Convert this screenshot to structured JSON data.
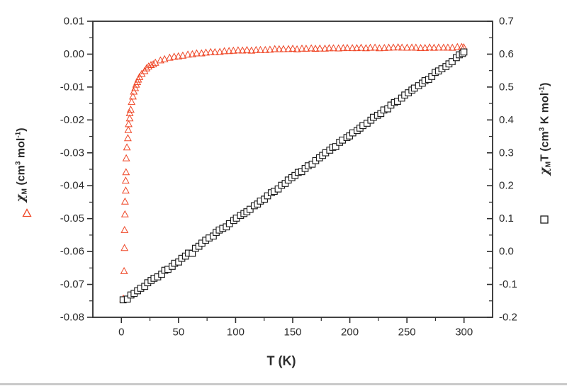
{
  "figure": {
    "background": "#ffffff",
    "frame_color": "#2e2e2e",
    "text_color": "#2b2b2b",
    "bottom_edge_color": "#c9c9c9"
  },
  "chart_data": {
    "type": "scatter",
    "title": "",
    "x_axis": {
      "label": "T (K)",
      "range": [
        -25,
        325
      ],
      "major_ticks": [
        0,
        50,
        100,
        150,
        200,
        250,
        300
      ],
      "major_tick_labels": [
        "0",
        "50",
        "100",
        "150",
        "200",
        "250",
        "300"
      ],
      "minor_ticks": [
        25,
        75,
        125,
        175,
        225,
        275
      ]
    },
    "left_axis": {
      "label": "χM (cm3 mol-1)",
      "title_parts": [
        {
          "t": "χ",
          "chi": true
        },
        {
          "t": "M",
          "pos": "sub"
        },
        {
          "t": " (cm"
        },
        {
          "t": "3",
          "pos": "sup"
        },
        {
          "t": " mol"
        },
        {
          "t": "-1",
          "pos": "sup"
        },
        {
          "t": ")"
        }
      ],
      "range": [
        -0.08,
        0.01
      ],
      "tick_values": [
        0.01,
        0.0,
        -0.01,
        -0.02,
        -0.03,
        -0.04,
        -0.05,
        -0.06,
        -0.07,
        -0.08
      ],
      "tick_labels": [
        "0.01",
        "0.00",
        "-0.01",
        "-0.02",
        "-0.03",
        "-0.04",
        "-0.05",
        "-0.06",
        "-0.07",
        "-0.08"
      ],
      "minor_ticks": [
        0.005,
        -0.005,
        -0.015,
        -0.025,
        -0.035,
        -0.045,
        -0.055,
        -0.065,
        -0.075
      ]
    },
    "right_axis": {
      "label": "χMT (cm3 K mol-1)",
      "title_parts": [
        {
          "t": "χ",
          "chi": true
        },
        {
          "t": "M",
          "pos": "sub"
        },
        {
          "t": "T"
        },
        {
          "t": " (cm"
        },
        {
          "t": "3",
          "pos": "sup"
        },
        {
          "t": " K mol"
        },
        {
          "t": "-1",
          "pos": "sup"
        },
        {
          "t": ")"
        }
      ],
      "range": [
        -0.2,
        0.7
      ],
      "tick_values": [
        0.7,
        0.6,
        0.5,
        0.4,
        0.3,
        0.2,
        0.1,
        0.0,
        -0.1,
        -0.2
      ],
      "tick_labels": [
        "0.7",
        "0.6",
        "0.5",
        "0.4",
        "0.3",
        "0.2",
        "0.1",
        "0.0",
        "-0.1",
        "-0.2"
      ],
      "minor_ticks": [
        0.65,
        0.55,
        0.45,
        0.35,
        0.25,
        0.15,
        0.05,
        -0.05,
        -0.15
      ]
    },
    "legend": [
      {
        "series": "chi_M",
        "marker": "open-triangle",
        "color": "#ef4626"
      },
      {
        "series": "chi_M_T",
        "marker": "open-square",
        "color": "#1b1b1b"
      }
    ],
    "series": [
      {
        "name": "chi_M",
        "axis": "left",
        "marker": "open-triangle",
        "color": "#ef4626",
        "points": [
          [
            2,
            -0.0745
          ],
          [
            2.25,
            -0.0659
          ],
          [
            2.5,
            -0.0591
          ],
          [
            2.75,
            -0.0535
          ],
          [
            3,
            -0.0488
          ],
          [
            3.25,
            -0.0449
          ],
          [
            3.5,
            -0.0415
          ],
          [
            3.75,
            -0.0386
          ],
          [
            4,
            -0.036
          ],
          [
            4.5,
            -0.0317
          ],
          [
            5,
            -0.0283
          ],
          [
            5.5,
            -0.0255
          ],
          [
            6,
            -0.0232
          ],
          [
            6.5,
            -0.0212
          ],
          [
            7,
            -0.0195
          ],
          [
            7.5,
            -0.018
          ],
          [
            8,
            -0.0168
          ],
          [
            9,
            -0.0146
          ],
          [
            10,
            -0.0129
          ],
          [
            11,
            -0.0115
          ],
          [
            12,
            -0.0103
          ],
          [
            13,
            -0.0093
          ],
          [
            14,
            -0.0085
          ],
          [
            15,
            -0.0078
          ],
          [
            16,
            -0.0071
          ],
          [
            18,
            -0.0061
          ],
          [
            20,
            -0.0052
          ],
          [
            22,
            -0.0045
          ],
          [
            24,
            -0.0039
          ],
          [
            26,
            -0.0034
          ],
          [
            28,
            -0.003
          ],
          [
            30,
            -0.0026
          ],
          [
            34,
            -0.002
          ],
          [
            38,
            -0.0016
          ],
          [
            42,
            -0.0012
          ],
          [
            46,
            -0.0008
          ],
          [
            50,
            -0.0006
          ],
          [
            54,
            -0.0004
          ],
          [
            58,
            -0.0002
          ],
          [
            62,
            0.0
          ],
          [
            66,
            0.0002
          ],
          [
            70,
            0.0003
          ],
          [
            74,
            0.0004
          ],
          [
            78,
            0.0005
          ],
          [
            82,
            0.0006
          ],
          [
            86,
            0.0007
          ],
          [
            90,
            0.0008
          ],
          [
            94,
            0.0009
          ],
          [
            98,
            0.0009
          ],
          [
            102,
            0.001
          ],
          [
            106,
            0.001
          ],
          [
            110,
            0.0011
          ],
          [
            114,
            0.0011
          ],
          [
            118,
            0.0012
          ],
          [
            122,
            0.0012
          ],
          [
            126,
            0.0013
          ],
          [
            130,
            0.0013
          ],
          [
            134,
            0.0014
          ],
          [
            138,
            0.0014
          ],
          [
            142,
            0.0014
          ],
          [
            146,
            0.0014
          ],
          [
            150,
            0.0015
          ],
          [
            154,
            0.0015
          ],
          [
            158,
            0.0015
          ],
          [
            162,
            0.0015
          ],
          [
            166,
            0.0016
          ],
          [
            170,
            0.0016
          ],
          [
            174,
            0.0016
          ],
          [
            178,
            0.0016
          ],
          [
            182,
            0.0017
          ],
          [
            186,
            0.0017
          ],
          [
            190,
            0.0017
          ],
          [
            194,
            0.0017
          ],
          [
            198,
            0.0017
          ],
          [
            202,
            0.0017
          ],
          [
            206,
            0.0018
          ],
          [
            210,
            0.0018
          ],
          [
            214,
            0.0018
          ],
          [
            218,
            0.0018
          ],
          [
            222,
            0.0018
          ],
          [
            226,
            0.0018
          ],
          [
            230,
            0.0018
          ],
          [
            234,
            0.0018
          ],
          [
            238,
            0.0019
          ],
          [
            242,
            0.0019
          ],
          [
            246,
            0.0019
          ],
          [
            250,
            0.0019
          ],
          [
            254,
            0.0019
          ],
          [
            258,
            0.0019
          ],
          [
            262,
            0.0019
          ],
          [
            266,
            0.0019
          ],
          [
            270,
            0.0019
          ],
          [
            274,
            0.0019
          ],
          [
            278,
            0.002
          ],
          [
            282,
            0.002
          ],
          [
            286,
            0.002
          ],
          [
            290,
            0.002
          ],
          [
            294,
            0.002
          ],
          [
            298,
            0.002
          ],
          [
            300,
            0.002
          ]
        ]
      },
      {
        "name": "chi_M_T",
        "axis": "right",
        "marker": "open-square",
        "color": "#1b1b1b",
        "fill": "#ffffff",
        "points": [
          [
            2,
            -0.15
          ],
          [
            5,
            -0.142
          ],
          [
            8,
            -0.135
          ],
          [
            11,
            -0.127
          ],
          [
            14,
            -0.12
          ],
          [
            17,
            -0.112
          ],
          [
            20,
            -0.105
          ],
          [
            23,
            -0.097
          ],
          [
            26,
            -0.089
          ],
          [
            29,
            -0.081
          ],
          [
            32,
            -0.074
          ],
          [
            35,
            -0.067
          ],
          [
            38,
            -0.059
          ],
          [
            41,
            -0.051
          ],
          [
            44,
            -0.043
          ],
          [
            47,
            -0.036
          ],
          [
            50,
            -0.029
          ],
          [
            53,
            -0.021
          ],
          [
            56,
            -0.013
          ],
          [
            59,
            -0.006
          ],
          [
            62,
            -0.004
          ],
          [
            65,
            0.01
          ],
          [
            68,
            0.017
          ],
          [
            71,
            0.025
          ],
          [
            74,
            0.032
          ],
          [
            77,
            0.04
          ],
          [
            80,
            0.047
          ],
          [
            83,
            0.055
          ],
          [
            86,
            0.063
          ],
          [
            89,
            0.07
          ],
          [
            92,
            0.078
          ],
          [
            95,
            0.086
          ],
          [
            98,
            0.093
          ],
          [
            101,
            0.101
          ],
          [
            104,
            0.108
          ],
          [
            107,
            0.116
          ],
          [
            110,
            0.124
          ],
          [
            113,
            0.131
          ],
          [
            116,
            0.139
          ],
          [
            119,
            0.146
          ],
          [
            122,
            0.154
          ],
          [
            125,
            0.162
          ],
          [
            128,
            0.169
          ],
          [
            131,
            0.177
          ],
          [
            134,
            0.184
          ],
          [
            137,
            0.192
          ],
          [
            140,
            0.2
          ],
          [
            143,
            0.207
          ],
          [
            146,
            0.215
          ],
          [
            149,
            0.222
          ],
          [
            152,
            0.23
          ],
          [
            155,
            0.238
          ],
          [
            158,
            0.245
          ],
          [
            161,
            0.253
          ],
          [
            164,
            0.26
          ],
          [
            167,
            0.268
          ],
          [
            170,
            0.276
          ],
          [
            173,
            0.283
          ],
          [
            176,
            0.291
          ],
          [
            179,
            0.298
          ],
          [
            182,
            0.306
          ],
          [
            185,
            0.314
          ],
          [
            188,
            0.321
          ],
          [
            191,
            0.329
          ],
          [
            194,
            0.336
          ],
          [
            197,
            0.344
          ],
          [
            200,
            0.352
          ],
          [
            203,
            0.359
          ],
          [
            206,
            0.367
          ],
          [
            209,
            0.374
          ],
          [
            212,
            0.382
          ],
          [
            215,
            0.39
          ],
          [
            218,
            0.397
          ],
          [
            221,
            0.405
          ],
          [
            224,
            0.412
          ],
          [
            227,
            0.42
          ],
          [
            230,
            0.428
          ],
          [
            233,
            0.435
          ],
          [
            236,
            0.443
          ],
          [
            239,
            0.45
          ],
          [
            242,
            0.458
          ],
          [
            245,
            0.466
          ],
          [
            248,
            0.473
          ],
          [
            251,
            0.481
          ],
          [
            254,
            0.488
          ],
          [
            257,
            0.496
          ],
          [
            260,
            0.504
          ],
          [
            263,
            0.511
          ],
          [
            266,
            0.519
          ],
          [
            269,
            0.526
          ],
          [
            272,
            0.534
          ],
          [
            275,
            0.542
          ],
          [
            278,
            0.549
          ],
          [
            281,
            0.557
          ],
          [
            284,
            0.564
          ],
          [
            287,
            0.572
          ],
          [
            290,
            0.58
          ],
          [
            293,
            0.587
          ],
          [
            296,
            0.595
          ],
          [
            299,
            0.602
          ],
          [
            300,
            0.605
          ]
        ]
      }
    ],
    "layout_hints": {
      "grid": false,
      "frame": true,
      "left_ticks": "out",
      "right_ticks": "in",
      "bottom_ticks": "out"
    }
  }
}
